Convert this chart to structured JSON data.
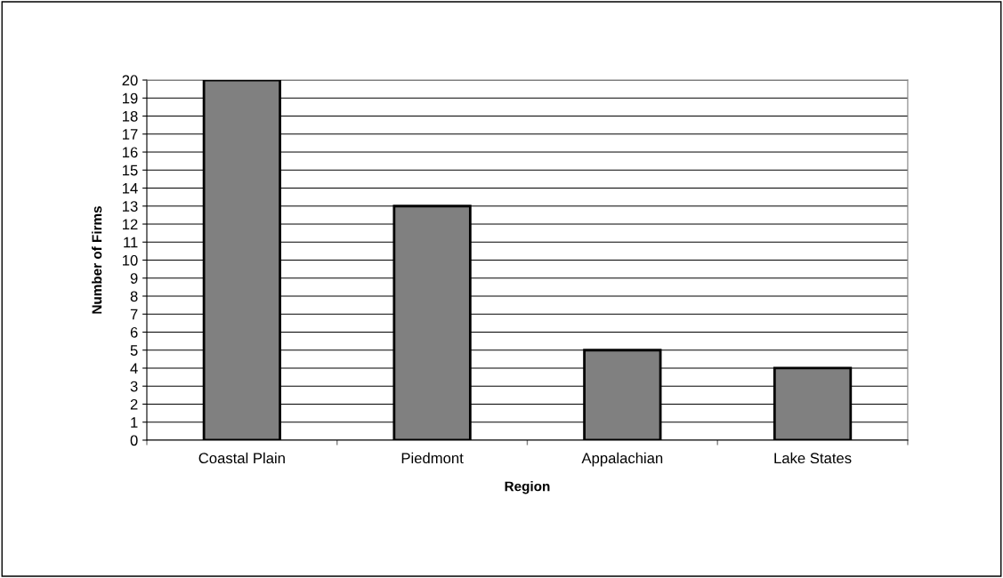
{
  "chart_data": {
    "type": "bar",
    "xlabel": "Region",
    "ylabel": "Number of Firms",
    "categories": [
      "Coastal Plain",
      "Piedmont",
      "Appalachian",
      "Lake States"
    ],
    "values": [
      20,
      13,
      5,
      4
    ],
    "color": "#808080",
    "ylim": [
      0,
      20
    ],
    "yticks": [
      0,
      1,
      2,
      3,
      4,
      5,
      6,
      7,
      8,
      9,
      10,
      11,
      12,
      13,
      14,
      15,
      16,
      17,
      18,
      19,
      20
    ],
    "grid": "y",
    "legend": false
  }
}
